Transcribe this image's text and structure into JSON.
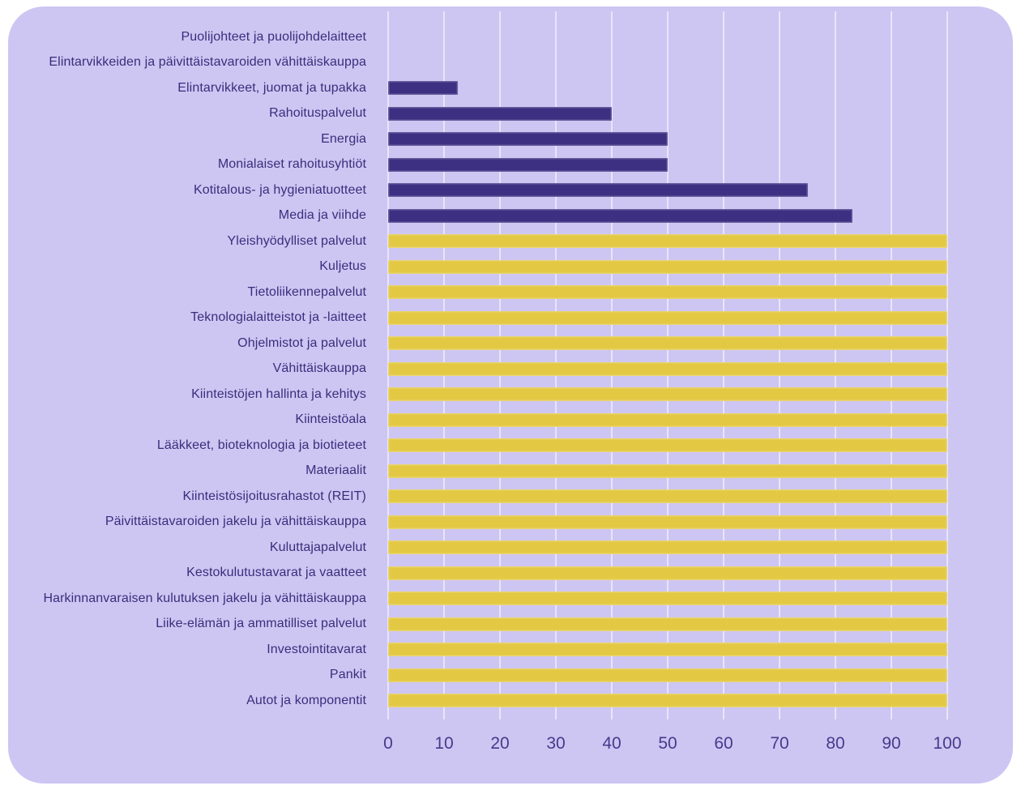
{
  "chart_data": {
    "type": "bar",
    "orientation": "horizontal",
    "title": "",
    "xlabel": "",
    "ylabel": "",
    "xlim": [
      0,
      100
    ],
    "xticks": [
      0,
      10,
      20,
      30,
      40,
      50,
      60,
      70,
      80,
      90,
      100
    ],
    "grid": true,
    "legend": "none",
    "categories": [
      "Puolijohteet ja puolijohdelaitteet",
      "Elintarvikkeiden ja päivittäistavaroiden vähittäiskauppa",
      "Elintarvikkeet, juomat ja tupakka",
      "Rahoituspalvelut",
      "Energia",
      "Monialaiset rahoitusyhtiöt",
      "Kotitalous- ja hygieniatuotteet",
      "Media ja viihde",
      "Yleishyödylliset palvelut",
      "Kuljetus",
      "Tietoliikennepalvelut",
      "Teknologialaitteistot ja -laitteet",
      "Ohjelmistot ja palvelut",
      "Vähittäiskauppa",
      "Kiinteistöjen hallinta ja kehitys",
      "Kiinteistöala",
      "Lääkkeet, bioteknologia ja biotieteet",
      "Materiaalit",
      "Kiinteistösijoitusrahastot (REIT)",
      "Päivittäistavaroiden jakelu ja vähittäiskauppa",
      "Kuluttajapalvelut",
      "Kestokulutustavarat ja vaatteet",
      "Harkinnanvaraisen kulutuksen jakelu ja vähittäiskauppa",
      "Liike-elämän ja ammatilliset palvelut",
      "Investointitavarat",
      "Pankit",
      "Autot ja komponentit"
    ],
    "values": [
      0,
      0,
      12.5,
      40,
      50,
      50,
      75,
      83,
      100,
      100,
      100,
      100,
      100,
      100,
      100,
      100,
      100,
      100,
      100,
      100,
      100,
      100,
      100,
      100,
      100,
      100,
      100
    ],
    "bar_colors": [
      "#3d3082",
      "#3d3082",
      "#3d3082",
      "#3d3082",
      "#3d3082",
      "#3d3082",
      "#3d3082",
      "#3d3082",
      "#e3c844",
      "#e3c844",
      "#e3c844",
      "#e3c844",
      "#e3c844",
      "#e3c844",
      "#e3c844",
      "#e3c844",
      "#e3c844",
      "#e3c844",
      "#e3c844",
      "#e3c844",
      "#e3c844",
      "#e3c844",
      "#e3c844",
      "#e3c844",
      "#e3c844",
      "#e3c844",
      "#e3c844"
    ],
    "colors": {
      "background_card": "#cdc6f2",
      "page_background": "#ffffff",
      "bar_dark": "#3d3082",
      "bar_yellow": "#e3c844",
      "label_text": "#3b2d7d",
      "tick_text": "#463a8c",
      "gridline": "rgba(255,255,255,0.55)"
    }
  }
}
